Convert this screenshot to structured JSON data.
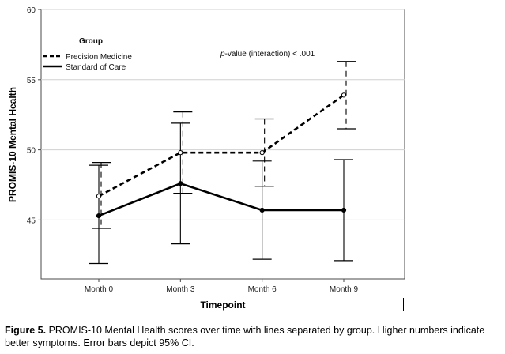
{
  "chart_data": {
    "type": "line",
    "xlabel": "Timepoint",
    "ylabel": "PROMIS-10 Mental Health",
    "categories": [
      "Month 0",
      "Month 3",
      "Month 6",
      "Month 9"
    ],
    "yticks": [
      45,
      50,
      55,
      60
    ],
    "ylim": [
      40.8,
      60
    ],
    "grid": "horizontal",
    "legend": {
      "title": "Group",
      "placement": "top-left"
    },
    "annotation": {
      "italic": "p",
      "rest": "-value (interaction) < .001"
    },
    "series": [
      {
        "name": "Precision Medicine",
        "style": "dashed",
        "marker": "open-circle",
        "color": "#000000",
        "values": [
          46.7,
          49.8,
          49.8,
          53.9
        ],
        "ci_low": [
          44.4,
          46.9,
          47.4,
          51.5
        ],
        "ci_high": [
          49.1,
          52.7,
          52.2,
          56.3
        ]
      },
      {
        "name": "Standard of Care",
        "style": "solid",
        "marker": "filled-circle",
        "color": "#000000",
        "values": [
          45.3,
          47.6,
          45.7,
          45.7
        ],
        "ci_low": [
          41.9,
          43.3,
          42.2,
          42.1
        ],
        "ci_high": [
          48.9,
          51.9,
          49.2,
          49.3
        ]
      }
    ]
  },
  "caption": {
    "label": "Figure 5.",
    "text": " PROMIS-10 Mental Health scores over time with lines separated by group. Higher numbers indicate better symptoms. Error bars depict 95% CI."
  }
}
